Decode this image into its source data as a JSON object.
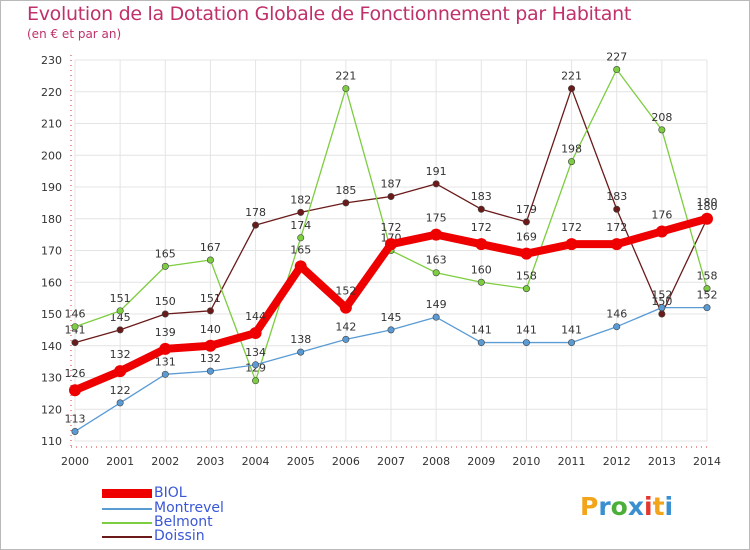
{
  "header": {
    "title": "Evolution de la Dotation Globale de Fonctionnement par Habitant",
    "subtitle": "(en € et par an)"
  },
  "brand": {
    "letters": [
      "P",
      "r",
      "o",
      "x",
      "i",
      "t",
      "i"
    ],
    "colors": [
      "#f2a51b",
      "#3a8fd0",
      "#4caf3a",
      "#3a8fd0",
      "#e3382e",
      "#f2a51b",
      "#3a8fd0"
    ]
  },
  "chart_data": {
    "type": "line",
    "x": [
      2000,
      2001,
      2002,
      2003,
      2004,
      2005,
      2006,
      2007,
      2008,
      2009,
      2010,
      2011,
      2012,
      2013,
      2014
    ],
    "ylim": [
      110,
      230
    ],
    "yticks": [
      110,
      120,
      130,
      140,
      150,
      160,
      170,
      180,
      190,
      200,
      210,
      220,
      230
    ],
    "grid": true,
    "legend_position": "bottom-left",
    "series": [
      {
        "name": "Doissin",
        "color": "#6b1a1a",
        "values": [
          141,
          145,
          150,
          151,
          178,
          182,
          185,
          187,
          191,
          183,
          179,
          221,
          183,
          150,
          180
        ]
      },
      {
        "name": "Belmont",
        "color": "#7ccd3f",
        "values": [
          146,
          151,
          165,
          167,
          129,
          174,
          221,
          170,
          163,
          160,
          158,
          198,
          227,
          208,
          158
        ]
      },
      {
        "name": "Montrevel",
        "color": "#5a9bd4",
        "values": [
          113,
          122,
          131,
          132,
          134,
          138,
          142,
          145,
          149,
          141,
          141,
          141,
          146,
          152,
          152
        ]
      },
      {
        "name": "BIOL",
        "color": "#ee0000",
        "values": [
          126,
          132,
          139,
          140,
          144,
          165,
          152,
          172,
          175,
          172,
          169,
          172,
          172,
          176,
          180
        ]
      }
    ]
  },
  "legend": {
    "items": [
      {
        "name": "BIOL",
        "color": "#ee0000"
      },
      {
        "name": "Montrevel",
        "color": "#5a9bd4"
      },
      {
        "name": "Belmont",
        "color": "#7ccd3f"
      },
      {
        "name": "Doissin",
        "color": "#6b1a1a"
      }
    ]
  }
}
